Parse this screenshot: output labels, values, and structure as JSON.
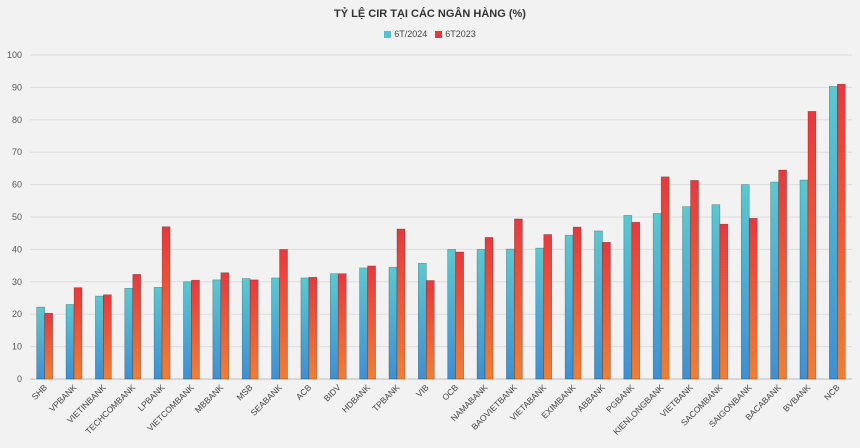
{
  "chart_data": {
    "type": "bar",
    "title": "TỶ LỆ CIR TẠI CÁC NGÂN HÀNG (%)",
    "xlabel": "",
    "ylabel": "",
    "ylim": [
      0,
      100
    ],
    "yticks": [
      0,
      10,
      20,
      30,
      40,
      50,
      60,
      70,
      80,
      90,
      100
    ],
    "grid": true,
    "legend_position": "top-center",
    "categories": [
      "SHB",
      "VPBANK",
      "VIETINBANK",
      "TECHCOMBANK",
      "LPBANK",
      "VIETCOMBANK",
      "MBBANK",
      "MSB",
      "SEABANK",
      "ACB",
      "BIDV",
      "HDBANK",
      "TPBANK",
      "VIB",
      "OCB",
      "NAMABANK",
      "BAOVIETBANK",
      "VIETABANK",
      "EXIMBANK",
      "ABBANK",
      "PGBANK",
      "KIENLONGBANK",
      "VIETBANK",
      "SACOMBANK",
      "SAIGONBANK",
      "BACABANK",
      "BVBANK",
      "NCB"
    ],
    "series": [
      {
        "name": "6T/2024",
        "color": "#5bc8d0",
        "color_bottom": "#3f8fd2",
        "values": [
          22.2,
          23.0,
          25.6,
          28.0,
          28.3,
          30.0,
          30.6,
          31.0,
          31.2,
          31.2,
          32.5,
          34.3,
          34.5,
          35.7,
          40.0,
          40.0,
          40.1,
          40.4,
          44.4,
          45.7,
          50.5,
          51.1,
          53.2,
          53.8,
          60.0,
          60.8,
          61.4,
          90.3
        ]
      },
      {
        "name": "6T2023",
        "color": "#e8383e",
        "color_bottom": "#ef7f35",
        "values": [
          20.3,
          28.2,
          26.0,
          32.3,
          47.0,
          30.5,
          32.8,
          30.6,
          40.0,
          31.4,
          32.5,
          34.9,
          46.3,
          30.4,
          39.2,
          43.7,
          49.4,
          44.6,
          46.9,
          42.2,
          48.4,
          62.4,
          61.3,
          47.8,
          49.6,
          64.5,
          82.6,
          91.0
        ]
      }
    ]
  }
}
